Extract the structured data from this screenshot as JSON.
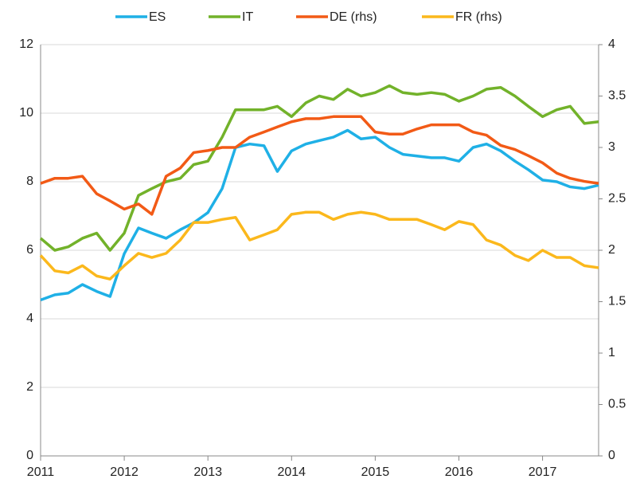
{
  "chart_data": {
    "type": "line",
    "x": [
      2011,
      2011.17,
      2011.33,
      2011.5,
      2011.67,
      2011.83,
      2012,
      2012.17,
      2012.33,
      2012.5,
      2012.67,
      2012.83,
      2013,
      2013.17,
      2013.33,
      2013.5,
      2013.67,
      2013.83,
      2014,
      2014.17,
      2014.33,
      2014.5,
      2014.67,
      2014.83,
      2015,
      2015.17,
      2015.33,
      2015.5,
      2015.67,
      2015.83,
      2016,
      2016.17,
      2016.33,
      2016.5,
      2016.67,
      2016.83,
      2017,
      2017.17,
      2017.33,
      2017.5,
      2017.67
    ],
    "series": [
      {
        "name": "ES",
        "color": "#1fb0e6",
        "values": [
          4.55,
          4.7,
          4.75,
          5.0,
          4.8,
          4.65,
          5.9,
          6.65,
          6.5,
          6.35,
          6.6,
          6.8,
          7.1,
          7.8,
          9.0,
          9.1,
          9.05,
          8.3,
          8.9,
          9.1,
          9.2,
          9.3,
          9.5,
          9.25,
          9.3,
          9.0,
          8.8,
          8.75,
          8.7,
          8.7,
          8.6,
          9.0,
          9.1,
          8.9,
          8.6,
          8.35,
          8.05,
          8.0,
          7.85,
          7.8,
          7.9
        ]
      },
      {
        "name": "IT",
        "color": "#72b22a",
        "values": [
          6.35,
          6.0,
          6.1,
          6.35,
          6.5,
          6.0,
          6.5,
          7.6,
          7.8,
          8.0,
          8.1,
          8.5,
          8.6,
          9.3,
          10.1,
          10.1,
          10.1,
          10.2,
          9.9,
          10.3,
          10.5,
          10.4,
          10.7,
          10.5,
          10.6,
          10.8,
          10.6,
          10.55,
          10.6,
          10.55,
          10.35,
          10.5,
          10.7,
          10.75,
          10.5,
          10.2,
          9.9,
          10.1,
          10.2,
          9.7,
          9.75
        ]
      },
      {
        "name": "DE (rhs)",
        "color": "#f25a16",
        "axis": "y2",
        "values": [
          2.65,
          2.7,
          2.7,
          2.72,
          2.55,
          2.48,
          2.4,
          2.45,
          2.35,
          2.72,
          2.8,
          2.95,
          2.97,
          3.0,
          3.0,
          3.1,
          3.15,
          3.2,
          3.25,
          3.28,
          3.28,
          3.3,
          3.3,
          3.3,
          3.15,
          3.13,
          3.13,
          3.18,
          3.22,
          3.22,
          3.22,
          3.15,
          3.12,
          3.02,
          2.98,
          2.92,
          2.85,
          2.75,
          2.7,
          2.67,
          2.65
        ]
      },
      {
        "name": "FR (rhs)",
        "color": "#fbb81c",
        "axis": "y2",
        "values": [
          1.95,
          1.8,
          1.78,
          1.85,
          1.75,
          1.72,
          1.85,
          1.97,
          1.93,
          1.97,
          2.1,
          2.27,
          2.27,
          2.3,
          2.32,
          2.1,
          2.15,
          2.2,
          2.35,
          2.37,
          2.37,
          2.3,
          2.35,
          2.37,
          2.35,
          2.3,
          2.3,
          2.3,
          2.25,
          2.2,
          2.28,
          2.25,
          2.1,
          2.05,
          1.95,
          1.9,
          2.0,
          1.93,
          1.93,
          1.85,
          1.83
        ]
      }
    ],
    "xlim": [
      2011,
      2017.67
    ],
    "xticks": [
      2011,
      2012,
      2013,
      2014,
      2015,
      2016,
      2017
    ],
    "ylim": [
      0,
      12
    ],
    "yticks": [
      0,
      2,
      4,
      6,
      8,
      10,
      12
    ],
    "y2lim": [
      0,
      4
    ],
    "y2ticks": [
      0,
      0.5,
      1,
      1.5,
      2,
      2.5,
      3,
      3.5,
      4
    ],
    "grid": true,
    "legend": "top"
  }
}
